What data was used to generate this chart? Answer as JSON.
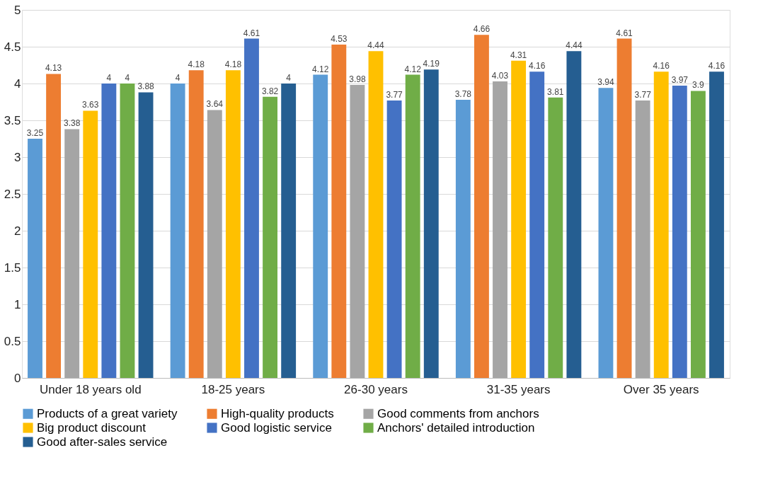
{
  "chart_data": {
    "type": "bar",
    "categories": [
      "Under 18 years old",
      "18-25 years",
      "26-30 years",
      "31-35 years",
      "Over 35 years"
    ],
    "series": [
      {
        "name": "Products of a great variety",
        "color": "#5b9bd5",
        "values": [
          3.25,
          4,
          4.12,
          3.78,
          3.94
        ]
      },
      {
        "name": "High-quality products",
        "color": "#ed7d31",
        "values": [
          4.13,
          4.18,
          4.53,
          4.66,
          4.61
        ]
      },
      {
        "name": "Good comments from anchors",
        "color": "#a5a5a5",
        "values": [
          3.38,
          3.64,
          3.98,
          4.03,
          3.77
        ]
      },
      {
        "name": "Big product discount",
        "color": "#ffc000",
        "values": [
          3.63,
          4.18,
          4.44,
          4.31,
          4.16
        ]
      },
      {
        "name": "Good logistic service",
        "color": "#4472c4",
        "values": [
          4,
          4.61,
          3.77,
          4.16,
          3.97
        ]
      },
      {
        "name": "Anchors' detailed introduction",
        "color": "#70ad47",
        "values": [
          4,
          3.82,
          4.12,
          3.81,
          3.9
        ]
      },
      {
        "name": "Good after-sales service",
        "color": "#255e91",
        "values": [
          3.88,
          4,
          4.19,
          4.44,
          4.16
        ]
      }
    ],
    "ylim": [
      0,
      5
    ],
    "yticks": [
      0,
      0.5,
      1,
      1.5,
      2,
      2.5,
      3,
      3.5,
      4,
      4.5,
      5
    ],
    "grid": "y",
    "legend": "bottom",
    "data_labels": true
  }
}
